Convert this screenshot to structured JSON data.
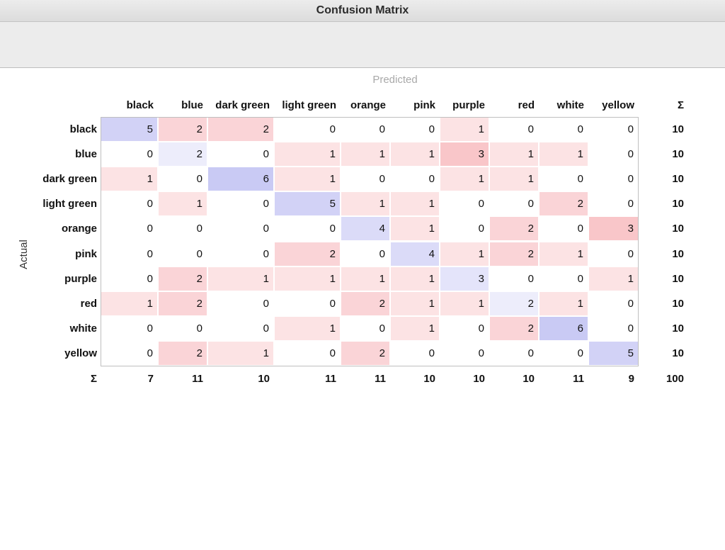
{
  "window": {
    "title": "Confusion Matrix"
  },
  "axis": {
    "predicted_label": "Predicted",
    "actual_label": "Actual",
    "sum_symbol": "Σ"
  },
  "colors": {
    "diagonal_tint": "#c8c9f4",
    "offdiag_tint": "#f8c0c4"
  },
  "classes": [
    "black",
    "blue",
    "dark green",
    "light green",
    "orange",
    "pink",
    "purple",
    "red",
    "white",
    "yellow"
  ],
  "matrix": [
    [
      5,
      2,
      2,
      0,
      0,
      0,
      1,
      0,
      0,
      0
    ],
    [
      0,
      2,
      0,
      1,
      1,
      1,
      3,
      1,
      1,
      0
    ],
    [
      1,
      0,
      6,
      1,
      0,
      0,
      1,
      1,
      0,
      0
    ],
    [
      0,
      1,
      0,
      5,
      1,
      1,
      0,
      0,
      2,
      0
    ],
    [
      0,
      0,
      0,
      0,
      4,
      1,
      0,
      2,
      0,
      3
    ],
    [
      0,
      0,
      0,
      2,
      0,
      4,
      1,
      2,
      1,
      0
    ],
    [
      0,
      2,
      1,
      1,
      1,
      1,
      3,
      0,
      0,
      1
    ],
    [
      1,
      2,
      0,
      0,
      2,
      1,
      1,
      2,
      1,
      0
    ],
    [
      0,
      0,
      0,
      1,
      0,
      1,
      0,
      2,
      6,
      0
    ],
    [
      0,
      2,
      1,
      0,
      2,
      0,
      0,
      0,
      0,
      5
    ]
  ],
  "row_totals": [
    "10",
    "10",
    "10",
    "10",
    "10",
    "10",
    "10",
    "10",
    "10",
    "10"
  ],
  "col_totals": [
    "7",
    "11",
    "10",
    "11",
    "11",
    "10",
    "10",
    "10",
    "11",
    "9"
  ],
  "grand_total": "100"
}
